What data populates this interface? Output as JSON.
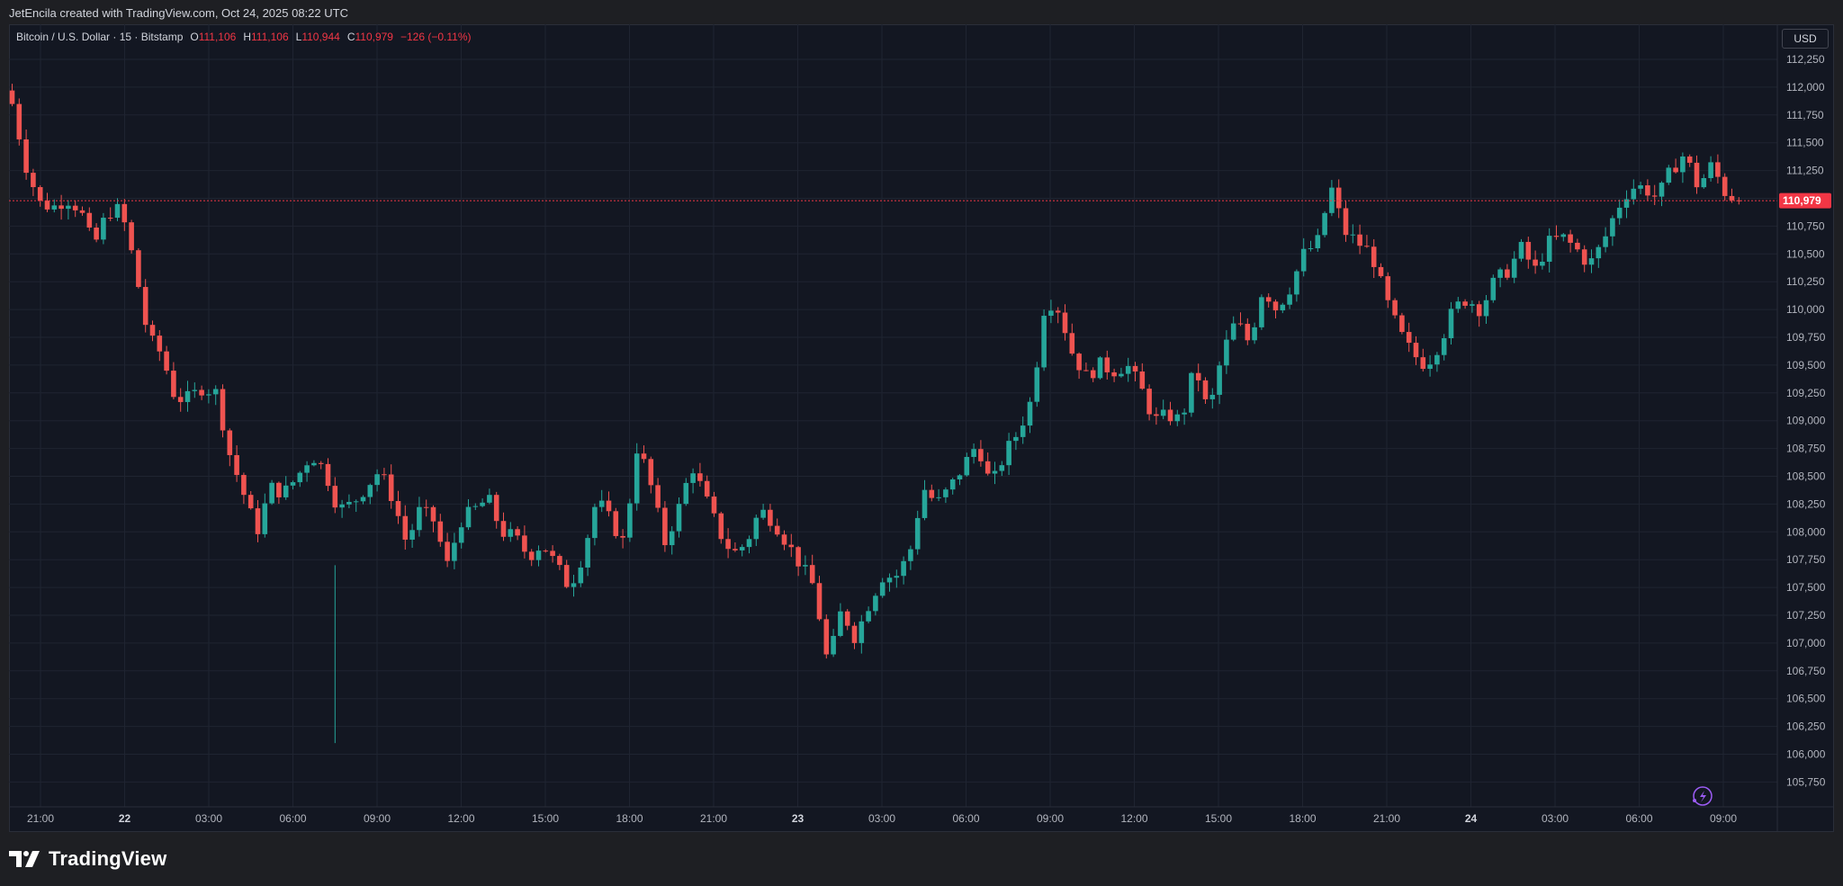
{
  "header": {
    "credit": "JetEncila created with TradingView.com, Oct 24, 2025 08:22 UTC"
  },
  "legend": {
    "symbol": "Bitcoin / U.S. Dollar · 15 · Bitstamp",
    "open_label": "O",
    "open": "111,106",
    "high_label": "H",
    "high": "111,106",
    "low_label": "L",
    "low": "110,944",
    "close_label": "C",
    "close": "110,979",
    "change": "−126 (−0.11%)"
  },
  "currency": "USD",
  "last_price_label": "110,979",
  "brand": {
    "name": "TradingView",
    "logo": "tradingview-logo-icon"
  },
  "icons": {
    "alert": "lightning-icon"
  },
  "colors": {
    "up": "#26a69a",
    "down": "#ef5350",
    "background": "#131722",
    "grid": "#1f2431",
    "last_price": "#f23645"
  },
  "chart_data": {
    "type": "candlestick",
    "interval": "15",
    "y_ticks": [
      "112,250",
      "112,000",
      "111,750",
      "111,500",
      "111,250",
      "111,000",
      "110,750",
      "110,500",
      "110,250",
      "110,000",
      "109,750",
      "109,500",
      "109,250",
      "109,000",
      "108,750",
      "108,500",
      "108,250",
      "108,000",
      "107,750",
      "107,500",
      "107,250",
      "107,000",
      "106,750",
      "106,500",
      "106,250",
      "106,000",
      "105,750"
    ],
    "ylim": [
      105600,
      112350
    ],
    "x_ticks": [
      {
        "label": "21:00",
        "bold": false
      },
      {
        "label": "22",
        "bold": true
      },
      {
        "label": "03:00",
        "bold": false
      },
      {
        "label": "06:00",
        "bold": false
      },
      {
        "label": "09:00",
        "bold": false
      },
      {
        "label": "12:00",
        "bold": false
      },
      {
        "label": "15:00",
        "bold": false
      },
      {
        "label": "18:00",
        "bold": false
      },
      {
        "label": "21:00",
        "bold": false
      },
      {
        "label": "23",
        "bold": true
      },
      {
        "label": "03:00",
        "bold": false
      },
      {
        "label": "06:00",
        "bold": false
      },
      {
        "label": "09:00",
        "bold": false
      },
      {
        "label": "12:00",
        "bold": false
      },
      {
        "label": "15:00",
        "bold": false
      },
      {
        "label": "18:00",
        "bold": false
      },
      {
        "label": "21:00",
        "bold": false
      },
      {
        "label": "24",
        "bold": true
      },
      {
        "label": "03:00",
        "bold": false
      },
      {
        "label": "06:00",
        "bold": false
      },
      {
        "label": "09:00",
        "bold": false
      }
    ],
    "last_price": 110979,
    "anchors": [
      [
        0,
        111850
      ],
      [
        1,
        111300
      ],
      [
        2,
        110960
      ],
      [
        3,
        110920
      ],
      [
        4,
        111000
      ],
      [
        5,
        110900
      ],
      [
        6,
        110560
      ],
      [
        7,
        110880
      ],
      [
        8,
        110900
      ],
      [
        9,
        110400
      ],
      [
        10,
        109750
      ],
      [
        11,
        109600
      ],
      [
        12,
        109200
      ],
      [
        13,
        109200
      ],
      [
        14,
        109300
      ],
      [
        15,
        109250
      ],
      [
        16,
        108700
      ],
      [
        17,
        108350
      ],
      [
        18,
        108000
      ],
      [
        19,
        108400
      ],
      [
        20,
        108350
      ],
      [
        21,
        108500
      ],
      [
        22,
        108700
      ],
      [
        23,
        108550
      ],
      [
        24,
        108200
      ],
      [
        25,
        108250
      ],
      [
        26,
        108400
      ],
      [
        27,
        108550
      ],
      [
        28,
        108300
      ],
      [
        29,
        107900
      ],
      [
        30,
        108200
      ],
      [
        31,
        108100
      ],
      [
        32,
        107700
      ],
      [
        33,
        108100
      ],
      [
        34,
        108200
      ],
      [
        35,
        108300
      ],
      [
        36,
        108000
      ],
      [
        37,
        107950
      ],
      [
        38,
        107780
      ],
      [
        39,
        107900
      ],
      [
        40,
        107700
      ],
      [
        41,
        107500
      ],
      [
        42,
        107800
      ],
      [
        43,
        108300
      ],
      [
        44,
        108100
      ],
      [
        45,
        107900
      ],
      [
        46,
        108800
      ],
      [
        47,
        108400
      ],
      [
        48,
        107900
      ],
      [
        49,
        108200
      ],
      [
        50,
        108600
      ],
      [
        51,
        108300
      ],
      [
        52,
        108000
      ],
      [
        53,
        107800
      ],
      [
        54,
        107900
      ],
      [
        55,
        108200
      ],
      [
        56,
        108100
      ],
      [
        57,
        107900
      ],
      [
        58,
        107700
      ],
      [
        59,
        107500
      ],
      [
        60,
        106800
      ],
      [
        61,
        107300
      ],
      [
        62,
        107050
      ],
      [
        63,
        107350
      ],
      [
        64,
        107600
      ],
      [
        65,
        107600
      ],
      [
        66,
        107800
      ],
      [
        67,
        108400
      ],
      [
        68,
        108250
      ],
      [
        69,
        108400
      ],
      [
        70,
        108600
      ],
      [
        71,
        108800
      ],
      [
        72,
        108400
      ],
      [
        73,
        108700
      ],
      [
        74,
        108900
      ],
      [
        75,
        109200
      ],
      [
        76,
        110100
      ],
      [
        77,
        110000
      ],
      [
        78,
        109600
      ],
      [
        79,
        109400
      ],
      [
        80,
        109500
      ],
      [
        81,
        109450
      ],
      [
        82,
        109500
      ],
      [
        83,
        109300
      ],
      [
        84,
        109000
      ],
      [
        85,
        109050
      ],
      [
        86,
        109000
      ],
      [
        87,
        109500
      ],
      [
        88,
        109050
      ],
      [
        89,
        109600
      ],
      [
        90,
        109900
      ],
      [
        91,
        109700
      ],
      [
        92,
        110200
      ],
      [
        93,
        110000
      ],
      [
        94,
        110200
      ],
      [
        95,
        110500
      ],
      [
        96,
        110600
      ],
      [
        97,
        111100
      ],
      [
        98,
        110700
      ],
      [
        99,
        110600
      ],
      [
        100,
        110500
      ],
      [
        101,
        110100
      ],
      [
        102,
        109800
      ],
      [
        103,
        109600
      ],
      [
        104,
        109500
      ],
      [
        105,
        109700
      ],
      [
        106,
        110000
      ],
      [
        107,
        110100
      ],
      [
        108,
        110000
      ],
      [
        109,
        110250
      ],
      [
        110,
        110350
      ],
      [
        111,
        110550
      ],
      [
        112,
        110350
      ],
      [
        113,
        110600
      ],
      [
        114,
        110650
      ],
      [
        115,
        110550
      ],
      [
        116,
        110400
      ],
      [
        117,
        110600
      ],
      [
        118,
        110900
      ],
      [
        119,
        111100
      ],
      [
        120,
        111100
      ],
      [
        121,
        111000
      ],
      [
        122,
        111250
      ],
      [
        123,
        111400
      ],
      [
        124,
        111100
      ],
      [
        125,
        111300
      ],
      [
        126,
        111050
      ],
      [
        127,
        110980
      ]
    ]
  }
}
